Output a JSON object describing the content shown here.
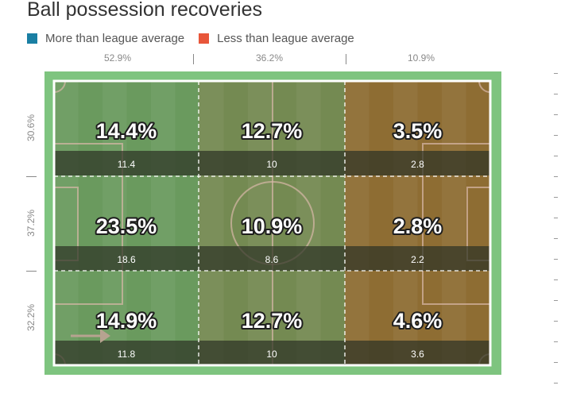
{
  "title": "Ball possession recoveries",
  "legend": [
    {
      "label": "More than league average",
      "color": "#1a7fa3"
    },
    {
      "label": "Less than league average",
      "color": "#e8563a"
    }
  ],
  "colors": {
    "pitch_outer": "#7ec47f",
    "above_average": "#6a9a5e",
    "below_average": "#8e6d33",
    "band": "#2e3326"
  },
  "chart_data": {
    "type": "heatmap",
    "title": "Ball possession recoveries",
    "columns": [
      "52.9%",
      "36.2%",
      "10.9%"
    ],
    "rows": [
      "30.6%",
      "37.2%",
      "32.2%"
    ],
    "column_values": [
      52.9,
      36.2,
      10.9
    ],
    "row_values": [
      30.6,
      37.2,
      32.2
    ],
    "cells": [
      [
        {
          "pct": "14.4%",
          "count": "11.4",
          "pct_value": 14.4,
          "count_value": 11.4
        },
        {
          "pct": "12.7%",
          "count": "10",
          "pct_value": 12.7,
          "count_value": 10
        },
        {
          "pct": "3.5%",
          "count": "2.8",
          "pct_value": 3.5,
          "count_value": 2.8
        }
      ],
      [
        {
          "pct": "23.5%",
          "count": "18.6",
          "pct_value": 23.5,
          "count_value": 18.6
        },
        {
          "pct": "10.9%",
          "count": "8.6",
          "pct_value": 10.9,
          "count_value": 8.6
        },
        {
          "pct": "2.8%",
          "count": "2.2",
          "pct_value": 2.8,
          "count_value": 2.2
        }
      ],
      [
        {
          "pct": "14.9%",
          "count": "11.8",
          "pct_value": 14.9,
          "count_value": 11.8
        },
        {
          "pct": "12.7%",
          "count": "10",
          "pct_value": 12.7,
          "count_value": 10
        },
        {
          "pct": "4.6%",
          "count": "3.6",
          "pct_value": 4.6,
          "count_value": 3.6
        }
      ]
    ],
    "direction_of_play": "left-to-right"
  }
}
